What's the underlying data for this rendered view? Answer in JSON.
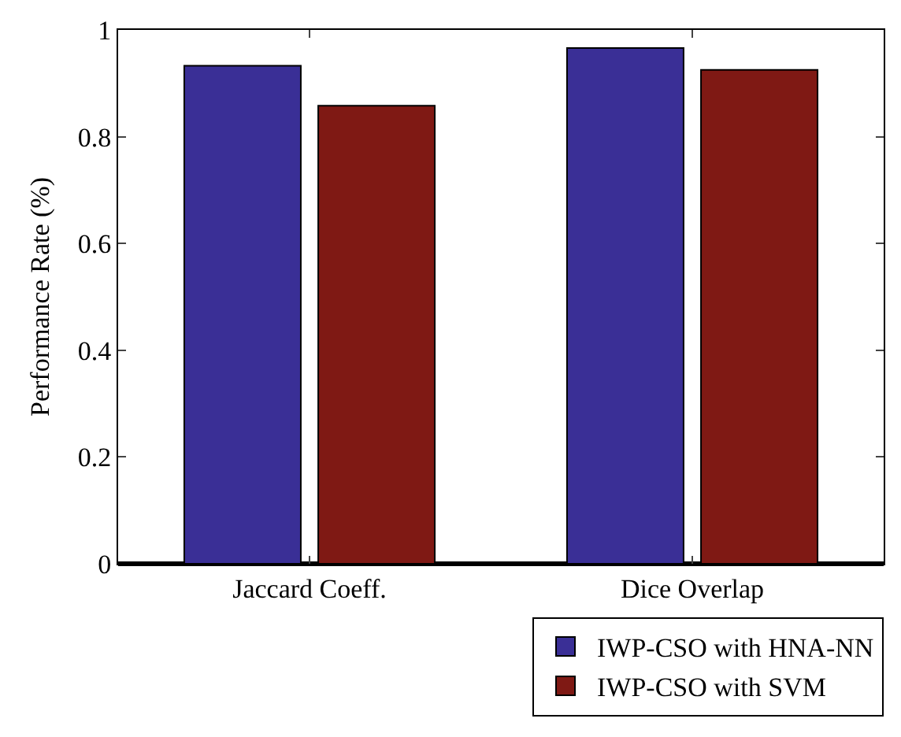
{
  "chart_data": {
    "type": "bar",
    "ylabel": "Performance Rate (%)",
    "categories": [
      "Jaccard Coeff.",
      "Dice Overlap"
    ],
    "series": [
      {
        "name": "IWP-CSO with HNA-NN",
        "color": "#3a2f96",
        "values": [
          0.933,
          0.966
        ]
      },
      {
        "name": "IWP-CSO with SVM",
        "color": "#7f1914",
        "values": [
          0.858,
          0.925
        ]
      }
    ],
    "ylim": [
      0,
      1
    ],
    "yticks": [
      0,
      0.2,
      0.4,
      0.6,
      0.8,
      1
    ],
    "grid": false,
    "legend": "bottom right"
  }
}
